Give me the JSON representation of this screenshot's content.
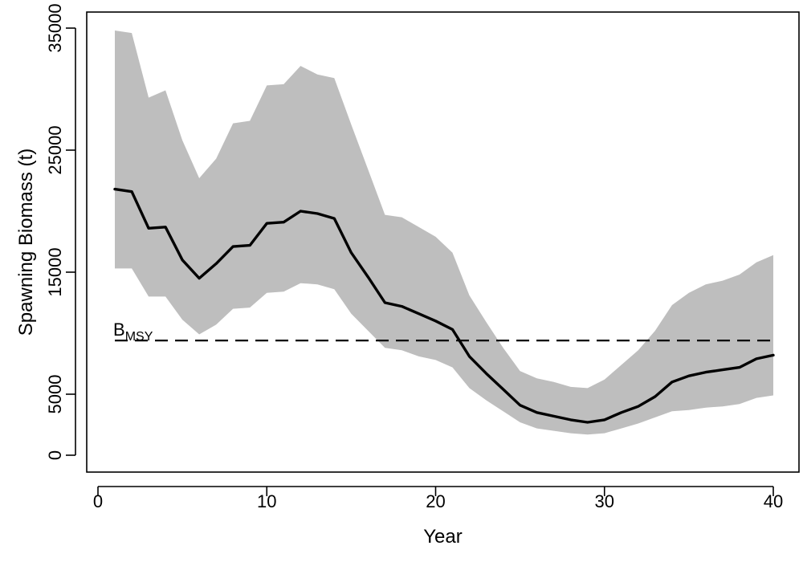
{
  "chart_data": {
    "type": "line",
    "title": "",
    "xlabel": "Year",
    "ylabel": "Spawning Biomass (t)",
    "xlim": [
      0,
      40
    ],
    "ylim": [
      0,
      35000
    ],
    "xticks": [
      0,
      10,
      20,
      30,
      40
    ],
    "xtick_labels": [
      "0",
      "10",
      "20",
      "30",
      "40"
    ],
    "yticks": [
      0,
      5000,
      15000,
      25000,
      35000
    ],
    "ytick_labels": [
      "0",
      "5000",
      "15000",
      "25000",
      "35000"
    ],
    "grid": false,
    "legend": "none",
    "series": [
      {
        "kind": "line",
        "color": "#000000",
        "x": [
          1,
          2,
          3,
          4,
          5,
          6,
          7,
          8,
          9,
          10,
          11,
          12,
          13,
          14,
          15,
          16,
          17,
          18,
          19,
          20,
          21,
          22,
          23,
          24,
          25,
          26,
          27,
          28,
          29,
          30,
          31,
          32,
          33,
          34,
          35,
          36,
          37,
          38,
          39,
          40
        ],
        "values": [
          21800,
          21600,
          18600,
          18700,
          16000,
          14500,
          15700,
          17100,
          17200,
          19000,
          19100,
          20000,
          19800,
          19400,
          16600,
          14600,
          12500,
          12200,
          11600,
          11000,
          10300,
          8100,
          6700,
          5400,
          4100,
          3500,
          3200,
          2900,
          2700,
          2900,
          3500,
          4000,
          4800,
          6000,
          6500,
          6800,
          7000,
          7200,
          7900,
          8200
        ]
      },
      {
        "kind": "band",
        "color": "#bebebe",
        "x": [
          1,
          2,
          3,
          4,
          5,
          6,
          7,
          8,
          9,
          10,
          11,
          12,
          13,
          14,
          15,
          16,
          17,
          18,
          19,
          20,
          21,
          22,
          23,
          24,
          25,
          26,
          27,
          28,
          29,
          30,
          31,
          32,
          33,
          34,
          35,
          36,
          37,
          38,
          39,
          40
        ],
        "upper": [
          34800,
          34600,
          29300,
          29900,
          25800,
          22700,
          24300,
          27200,
          27400,
          30300,
          30400,
          31900,
          31200,
          30900,
          27100,
          23400,
          19700,
          19500,
          18700,
          17900,
          16600,
          13100,
          10900,
          8800,
          6900,
          6300,
          6000,
          5600,
          5500,
          6200,
          7400,
          8600,
          10200,
          12300,
          13300,
          14000,
          14300,
          14800,
          15800,
          16400
        ],
        "lower": [
          15300,
          15300,
          13000,
          13000,
          11100,
          9900,
          10700,
          12000,
          12100,
          13300,
          13400,
          14100,
          14000,
          13600,
          11600,
          10200,
          8800,
          8600,
          8100,
          7800,
          7200,
          5500,
          4500,
          3600,
          2700,
          2200,
          2000,
          1800,
          1700,
          1800,
          2200,
          2600,
          3100,
          3600,
          3700,
          3900,
          4000,
          4200,
          4700,
          4900
        ]
      }
    ],
    "reference_lines": [
      {
        "y": 9400,
        "style": "dashed",
        "color": "#000000",
        "label": "B",
        "label_subscript": "MSY"
      }
    ]
  }
}
